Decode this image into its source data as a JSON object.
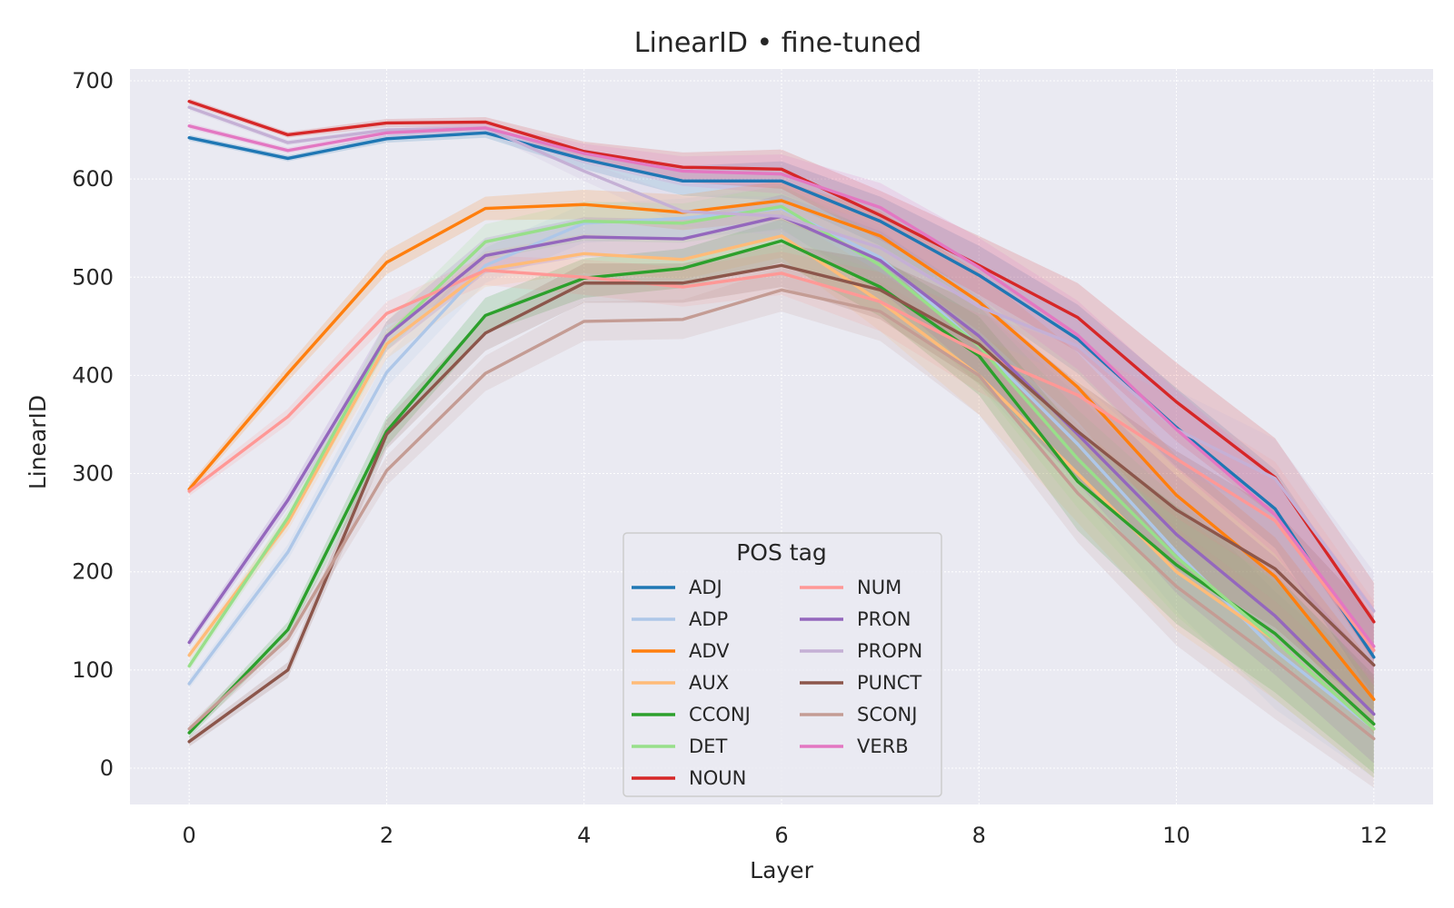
{
  "chart_data": {
    "type": "line",
    "title": "LinearID • fine-tuned",
    "xlabel": "Layer",
    "ylabel": "LinearID",
    "x": [
      0,
      1,
      2,
      3,
      4,
      5,
      6,
      7,
      8,
      9,
      10,
      11,
      12
    ],
    "xlim": [
      -0.6,
      12.6
    ],
    "ylim": [
      -37,
      712
    ],
    "xticks": [
      0,
      2,
      4,
      6,
      8,
      10,
      12
    ],
    "yticks": [
      0,
      100,
      200,
      300,
      400,
      500,
      600,
      700
    ],
    "grid": true,
    "legend": {
      "title": "POS tag",
      "position": "lower-center",
      "columns": 2
    },
    "series": [
      {
        "name": "ADJ",
        "color": "#1f77b4",
        "values": [
          642,
          621,
          641,
          647,
          620,
          598,
          598,
          557,
          502,
          437,
          347,
          264,
          113
        ],
        "band": [
          3,
          3,
          4,
          5,
          10,
          15,
          20,
          25,
          30,
          35,
          40,
          40,
          40
        ]
      },
      {
        "name": "ADP",
        "color": "#aec7e8",
        "values": [
          86,
          220,
          403,
          512,
          555,
          560,
          570,
          520,
          430,
          330,
          220,
          120,
          40
        ],
        "band": [
          5,
          8,
          15,
          18,
          20,
          20,
          22,
          30,
          40,
          50,
          60,
          60,
          50
        ]
      },
      {
        "name": "ADV",
        "color": "#ff7f0e",
        "values": [
          284,
          402,
          515,
          570,
          574,
          566,
          578,
          542,
          475,
          388,
          278,
          195,
          70
        ],
        "band": [
          5,
          8,
          12,
          12,
          15,
          18,
          20,
          25,
          30,
          35,
          40,
          40,
          35
        ]
      },
      {
        "name": "AUX",
        "color": "#ffbb78",
        "values": [
          115,
          250,
          432,
          508,
          524,
          518,
          542,
          475,
          400,
          300,
          200,
          130,
          40
        ],
        "band": [
          5,
          8,
          15,
          18,
          20,
          20,
          22,
          30,
          40,
          50,
          60,
          60,
          50
        ]
      },
      {
        "name": "CCONJ",
        "color": "#2ca02c",
        "values": [
          36,
          141,
          343,
          461,
          499,
          509,
          537,
          490,
          420,
          292,
          207,
          137,
          45
        ],
        "band": [
          5,
          8,
          15,
          18,
          20,
          20,
          22,
          30,
          40,
          50,
          60,
          60,
          50
        ]
      },
      {
        "name": "DET",
        "color": "#98df8a",
        "values": [
          104,
          255,
          440,
          536,
          557,
          555,
          572,
          512,
          430,
          315,
          215,
          130,
          40
        ],
        "band": [
          5,
          8,
          15,
          18,
          20,
          20,
          22,
          30,
          40,
          50,
          60,
          60,
          50
        ]
      },
      {
        "name": "NOUN",
        "color": "#d62728",
        "values": [
          679,
          645,
          657,
          658,
          628,
          612,
          610,
          563,
          512,
          459,
          373,
          296,
          149
        ],
        "band": [
          3,
          3,
          4,
          5,
          10,
          15,
          20,
          25,
          30,
          35,
          40,
          40,
          40
        ]
      },
      {
        "name": "NUM",
        "color": "#ff9896",
        "values": [
          282,
          358,
          463,
          507,
          500,
          490,
          504,
          475,
          423,
          380,
          315,
          252,
          120
        ],
        "band": [
          5,
          8,
          12,
          15,
          18,
          20,
          22,
          30,
          40,
          50,
          60,
          60,
          50
        ]
      },
      {
        "name": "PRON",
        "color": "#9467bd",
        "values": [
          128,
          273,
          440,
          522,
          541,
          539,
          562,
          517,
          440,
          340,
          238,
          155,
          55
        ],
        "band": [
          5,
          8,
          15,
          18,
          20,
          20,
          22,
          30,
          40,
          50,
          60,
          60,
          50
        ]
      },
      {
        "name": "PROPN",
        "color": "#c5b0d5",
        "values": [
          673,
          637,
          650,
          652,
          608,
          567,
          562,
          530,
          470,
          430,
          345,
          295,
          160
        ],
        "band": [
          3,
          3,
          4,
          5,
          10,
          15,
          20,
          25,
          30,
          35,
          40,
          40,
          40
        ]
      },
      {
        "name": "PUNCT",
        "color": "#8c564b",
        "values": [
          27,
          100,
          340,
          443,
          494,
          494,
          512,
          487,
          432,
          343,
          263,
          203,
          105
        ],
        "band": [
          5,
          8,
          15,
          18,
          20,
          20,
          22,
          30,
          40,
          50,
          60,
          60,
          50
        ]
      },
      {
        "name": "SCONJ",
        "color": "#c49c94",
        "values": [
          40,
          132,
          303,
          402,
          455,
          457,
          487,
          465,
          400,
          280,
          185,
          110,
          30
        ],
        "band": [
          5,
          8,
          15,
          18,
          20,
          20,
          22,
          30,
          40,
          50,
          60,
          60,
          50
        ]
      },
      {
        "name": "VERB",
        "color": "#e377c2",
        "values": [
          654,
          629,
          647,
          652,
          626,
          608,
          605,
          571,
          510,
          441,
          345,
          258,
          124
        ],
        "band": [
          3,
          3,
          4,
          5,
          10,
          15,
          20,
          25,
          30,
          35,
          40,
          40,
          40
        ]
      }
    ]
  }
}
